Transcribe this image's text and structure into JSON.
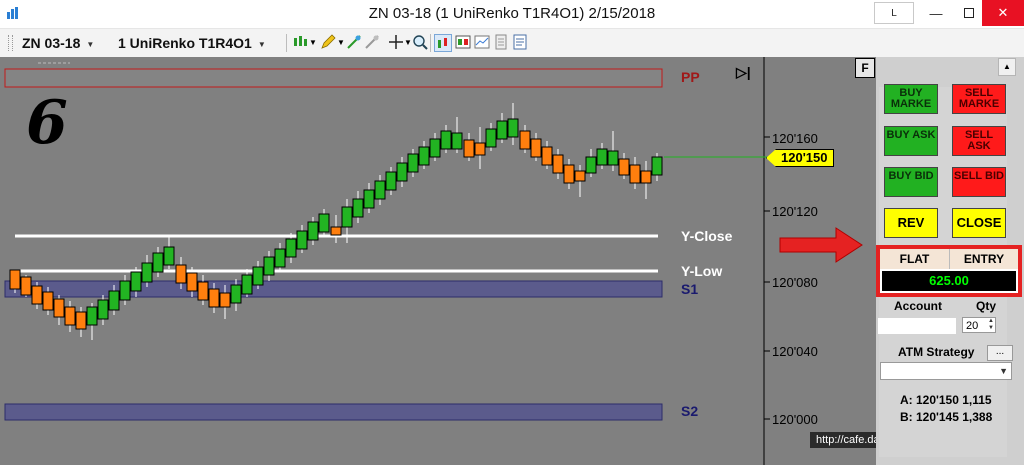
{
  "window": {
    "title": "ZN 03-18 (1 UniRenko T1R4O1)  2/15/2018",
    "link_button_label": "L",
    "minimize_label": "—",
    "close_label": "✕"
  },
  "toolbar": {
    "instrument": "ZN 03-18",
    "bar_type": "1 UniRenko T1R4O1",
    "icons": [
      "bar-type-icon",
      "pencil-icon",
      "draw-tools-icon",
      "crosshair-icon",
      "zoom-icon",
      "data-box-icon",
      "chart-trader-icon",
      "properties-icon"
    ]
  },
  "chart": {
    "big_number": "6",
    "level_labels": {
      "pp": "PP",
      "y_close": "Y-Close",
      "y_low": "Y-Low",
      "s1": "S1",
      "s2": "S2"
    },
    "price_axis": [
      "120'160",
      "120'120",
      "120'080",
      "120'040",
      "120'000"
    ],
    "last_price": "120'150",
    "watermark": "http://cafe.daum.net/treasurytrader",
    "colors": {
      "background": "#808080",
      "up_bar": "#22b422",
      "down_bar": "#ff7f0e",
      "pp_line": "#c21a1a",
      "s_zone": "#5b5b8c"
    }
  },
  "panel": {
    "f_button": "F",
    "buttons": {
      "buy_market": "BUY MARKE",
      "sell_market": "SELL MARKE",
      "buy_ask": "BUY ASK",
      "sell_ask": "SELL ASK",
      "buy_bid": "BUY BID",
      "sell_bid": "SELL BID",
      "rev": "REV",
      "close": "CLOSE"
    },
    "position": {
      "flat_label": "FLAT",
      "entry_label": "ENTRY",
      "value": "625.00"
    },
    "account_label": "Account",
    "qty_label": "Qty",
    "qty_value": "20",
    "atm_label": "ATM Strategy",
    "atm_more": "...",
    "ask_line": "A: 120'150  1,115",
    "bid_line": "B: 120'145  1,388"
  }
}
